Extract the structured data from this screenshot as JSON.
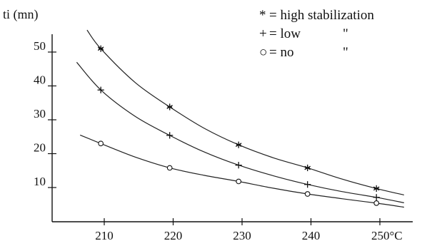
{
  "chart_data": {
    "type": "line",
    "ylabel": "ti (mn)",
    "xlabel": "",
    "x_tick_labels": [
      "210",
      "220",
      "230",
      "240",
      "250°C"
    ],
    "y_tick_labels": [
      "10",
      "20",
      "30",
      "40",
      "50"
    ],
    "x_ticks": [
      210,
      220,
      230,
      240,
      250
    ],
    "y_ticks": [
      10,
      20,
      30,
      40,
      50
    ],
    "xlim": [
      202,
      255
    ],
    "ylim": [
      0,
      60
    ],
    "grid": false,
    "legend_position": "top-right",
    "legend": {
      "title": "",
      "entries": [
        {
          "symbol": "*",
          "text": "= high stabilization",
          "ditto": ""
        },
        {
          "symbol": "+",
          "text": "= low",
          "ditto": "\""
        },
        {
          "symbol": "○",
          "text": "= no",
          "ditto": "\""
        }
      ]
    },
    "series": [
      {
        "marker": "star",
        "points": [
          [
            209.5,
            51.0
          ],
          [
            219.5,
            33.8
          ],
          [
            229.5,
            22.6
          ],
          [
            239.5,
            15.8
          ],
          [
            249.5,
            9.7
          ]
        ],
        "curve": [
          [
            207.5,
            56.5
          ],
          [
            209.5,
            51.0
          ],
          [
            214.5,
            41.0
          ],
          [
            219.5,
            33.8
          ],
          [
            224.5,
            27.5
          ],
          [
            229.5,
            22.6
          ],
          [
            234.5,
            18.8
          ],
          [
            239.5,
            15.8
          ],
          [
            244.5,
            12.5
          ],
          [
            249.5,
            9.7
          ],
          [
            253.5,
            7.8
          ]
        ]
      },
      {
        "marker": "plus",
        "points": [
          [
            209.5,
            38.8
          ],
          [
            219.5,
            25.4
          ],
          [
            229.5,
            16.6
          ],
          [
            239.5,
            10.9
          ],
          [
            249.5,
            7.1
          ]
        ],
        "curve": [
          [
            206.0,
            47.0
          ],
          [
            209.5,
            38.8
          ],
          [
            214.5,
            31.0
          ],
          [
            219.5,
            25.4
          ],
          [
            224.5,
            20.5
          ],
          [
            229.5,
            16.6
          ],
          [
            234.5,
            13.5
          ],
          [
            239.5,
            10.9
          ],
          [
            244.5,
            8.8
          ],
          [
            249.5,
            7.1
          ],
          [
            253.5,
            5.5
          ]
        ]
      },
      {
        "marker": "circle",
        "points": [
          [
            209.5,
            23.0
          ],
          [
            219.5,
            15.8
          ],
          [
            229.5,
            11.8
          ],
          [
            239.5,
            8.1
          ],
          [
            249.5,
            5.4
          ]
        ],
        "curve": [
          [
            206.5,
            25.5
          ],
          [
            209.5,
            23.0
          ],
          [
            214.5,
            19.0
          ],
          [
            219.5,
            15.8
          ],
          [
            224.5,
            13.6
          ],
          [
            229.5,
            11.8
          ],
          [
            234.5,
            9.8
          ],
          [
            239.5,
            8.1
          ],
          [
            244.5,
            6.7
          ],
          [
            249.5,
            5.4
          ],
          [
            253.5,
            4.2
          ]
        ]
      }
    ]
  }
}
